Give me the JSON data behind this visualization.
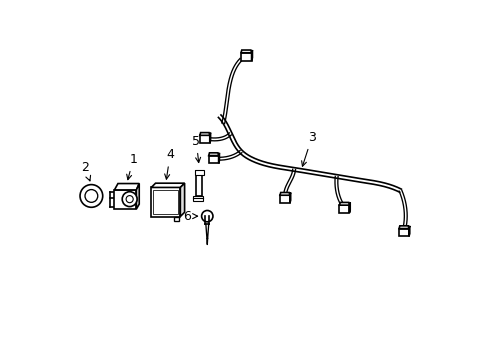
{
  "bg_color": "#ffffff",
  "line_color": "#000000",
  "lw": 1.2,
  "tlw": 0.8,
  "fig_width": 4.89,
  "fig_height": 3.6,
  "dpi": 100
}
